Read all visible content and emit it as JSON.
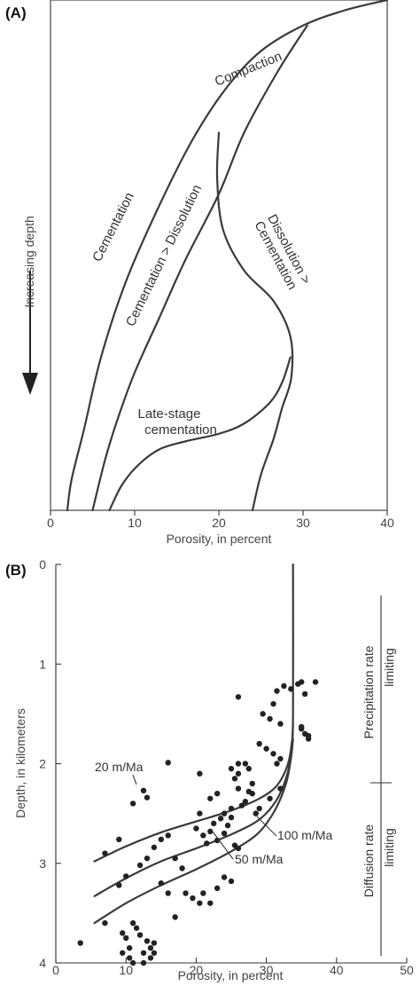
{
  "chart_data": [
    {
      "panel_label": "(A)",
      "type": "line",
      "x_ticks": [
        "0",
        "10",
        "20",
        "30",
        "40"
      ],
      "xlim": [
        0,
        40
      ],
      "xlabel": "Porosity, in percent",
      "ylabel": "Increasing depth",
      "curve_labels": {
        "compaction": "Compaction",
        "cementation": "Cementation",
        "cem_gt_dis": "Cementation > Dissolution",
        "dis_gt_cem_1": "Dissolution >",
        "dis_gt_cem_2": "Cementation",
        "late_1": "Late-stage",
        "late_2": "cementation"
      },
      "series": [
        {
          "name": "Compaction",
          "points": [
            [
              40,
              0.0
            ],
            [
              35,
              0.02
            ],
            [
              30,
              0.05
            ],
            [
              25,
              0.1
            ],
            [
              21,
              0.17
            ],
            [
              17,
              0.27
            ],
            [
              13,
              0.4
            ],
            [
              9,
              0.55
            ],
            [
              6,
              0.7
            ],
            [
              4,
              0.84
            ],
            [
              2.5,
              0.94
            ],
            [
              2,
              1.0
            ]
          ]
        },
        {
          "name": "Cementation > Dissolution",
          "points": [
            [
              30.5,
              0.05
            ],
            [
              27,
              0.14
            ],
            [
              23,
              0.26
            ],
            [
              20,
              0.38
            ],
            [
              16,
              0.51
            ],
            [
              13,
              0.62
            ],
            [
              10,
              0.73
            ],
            [
              8,
              0.82
            ],
            [
              6.5,
              0.9
            ],
            [
              5,
              1.0
            ]
          ]
        },
        {
          "name": "Dissolution > Cementation",
          "points": [
            [
              20,
              0.26
            ],
            [
              19.8,
              0.35
            ],
            [
              20.5,
              0.45
            ],
            [
              23,
              0.53
            ],
            [
              26.5,
              0.59
            ],
            [
              28.5,
              0.66
            ],
            [
              28.6,
              0.74
            ],
            [
              27.5,
              0.8
            ],
            [
              26.5,
              0.86
            ],
            [
              25,
              0.93
            ],
            [
              24,
              1.0
            ]
          ]
        },
        {
          "name": "Late-stage cementation",
          "points": [
            [
              28.5,
              0.7
            ],
            [
              27.5,
              0.75
            ],
            [
              26,
              0.79
            ],
            [
              23,
              0.83
            ],
            [
              20,
              0.85
            ],
            [
              16,
              0.865
            ],
            [
              13,
              0.88
            ],
            [
              10.5,
              0.91
            ],
            [
              8.5,
              0.95
            ],
            [
              7,
              1.0
            ]
          ]
        }
      ]
    },
    {
      "panel_label": "(B)",
      "type": "scatter",
      "x_ticks": [
        "0",
        "10",
        "20",
        "30",
        "40",
        "50"
      ],
      "y_ticks": [
        "0",
        "1",
        "2",
        "3",
        "4"
      ],
      "xlim": [
        0,
        50
      ],
      "ylim": [
        0,
        4
      ],
      "xlabel": "Porosity, in percent",
      "ylabel": "Depth, in kilometers",
      "annotations": {
        "precip_1": "Precipitation rate",
        "precip_2": "limiting",
        "diff_1": "Diffusion rate",
        "diff_2": "limiting"
      },
      "series": [
        {
          "name": "20 m/Ma",
          "points": [
            [
              5.5,
              2.98
            ],
            [
              10,
              2.83
            ],
            [
              15,
              2.69
            ],
            [
              20,
              2.58
            ],
            [
              25,
              2.47
            ],
            [
              29,
              2.35
            ],
            [
              31.5,
              2.22
            ],
            [
              33,
              2.02
            ],
            [
              33.6,
              1.8
            ],
            [
              33.8,
              1.5
            ],
            [
              33.8,
              0.0
            ]
          ]
        },
        {
          "name": "100 m/Ma",
          "points": [
            [
              5.5,
              3.33
            ],
            [
              10,
              3.15
            ],
            [
              15,
              2.98
            ],
            [
              20,
              2.85
            ],
            [
              25,
              2.71
            ],
            [
              29,
              2.56
            ],
            [
              31.5,
              2.36
            ],
            [
              33,
              2.1
            ],
            [
              33.6,
              1.85
            ],
            [
              33.8,
              1.6
            ]
          ]
        },
        {
          "name": "50 m/Ma",
          "points": [
            [
              5.5,
              3.6
            ],
            [
              10,
              3.4
            ],
            [
              15,
              3.22
            ],
            [
              20,
              3.06
            ],
            [
              25,
              2.88
            ],
            [
              28.8,
              2.7
            ],
            [
              31.2,
              2.47
            ],
            [
              32.8,
              2.2
            ],
            [
              33.5,
              1.95
            ],
            [
              33.8,
              1.75
            ]
          ]
        },
        {
          "name": "data",
          "points": [
            [
              3.5,
              3.8
            ],
            [
              7,
              2.9
            ],
            [
              9,
              2.76
            ],
            [
              11,
              2.4
            ],
            [
              12.5,
              2.27
            ],
            [
              13,
              2.34
            ],
            [
              16,
              1.99
            ],
            [
              7,
              3.6
            ],
            [
              9.5,
              3.7
            ],
            [
              10,
              3.75
            ],
            [
              10.5,
              3.85
            ],
            [
              11,
              3.6
            ],
            [
              11.5,
              3.65
            ],
            [
              12,
              3.72
            ],
            [
              12.5,
              3.9
            ],
            [
              13,
              3.78
            ],
            [
              13.5,
              3.85
            ],
            [
              14,
              3.8
            ],
            [
              9.5,
              3.9
            ],
            [
              10.5,
              3.95
            ],
            [
              11,
              4.0
            ],
            [
              12.5,
              4.0
            ],
            [
              13.5,
              3.95
            ],
            [
              14,
              3.9
            ],
            [
              9,
              3.22
            ],
            [
              10,
              3.13
            ],
            [
              12,
              3.02
            ],
            [
              13,
              2.95
            ],
            [
              14,
              2.84
            ],
            [
              15,
              2.76
            ],
            [
              16,
              2.72
            ],
            [
              17,
              2.95
            ],
            [
              18,
              3.05
            ],
            [
              15,
              3.2
            ],
            [
              16,
              3.3
            ],
            [
              17,
              3.54
            ],
            [
              18.5,
              3.3
            ],
            [
              19.5,
              3.35
            ],
            [
              20.5,
              3.4
            ],
            [
              21,
              3.3
            ],
            [
              22,
              3.4
            ],
            [
              23,
              3.25
            ],
            [
              24,
              3.14
            ],
            [
              25,
              3.18
            ],
            [
              20.5,
              2.1
            ],
            [
              22,
              2.35
            ],
            [
              23,
              2.3
            ],
            [
              24,
              2.5
            ],
            [
              25,
              2.45
            ],
            [
              20,
              2.65
            ],
            [
              20.5,
              2.5
            ],
            [
              21,
              2.72
            ],
            [
              21.5,
              2.8
            ],
            [
              22,
              2.68
            ],
            [
              22.5,
              2.6
            ],
            [
              23,
              2.77
            ],
            [
              23.5,
              2.55
            ],
            [
              24,
              2.7
            ],
            [
              24.5,
              2.62
            ],
            [
              25,
              2.54
            ],
            [
              25.5,
              2.82
            ],
            [
              26,
              2.85
            ],
            [
              26.5,
              2.42
            ],
            [
              27,
              2.38
            ],
            [
              27.5,
              2.28
            ],
            [
              28,
              2.3
            ],
            [
              28.5,
              2.5
            ],
            [
              29,
              2.45
            ],
            [
              26,
              2.1
            ],
            [
              27,
              2.0
            ],
            [
              27.5,
              2.05
            ],
            [
              28,
              2.2
            ],
            [
              26,
              2.25
            ],
            [
              25.5,
              2.15
            ],
            [
              29,
              1.8
            ],
            [
              30,
              1.85
            ],
            [
              31,
              1.9
            ],
            [
              31.5,
              2.0
            ],
            [
              32,
              1.95
            ],
            [
              30.5,
              2.35
            ],
            [
              32,
              2.25
            ],
            [
              29.5,
              1.5
            ],
            [
              30.5,
              1.55
            ],
            [
              31,
              1.4
            ],
            [
              32,
              1.6
            ],
            [
              31.5,
              1.27
            ],
            [
              32.5,
              1.22
            ],
            [
              33.5,
              1.25
            ],
            [
              34.5,
              1.2
            ],
            [
              35,
              1.18
            ],
            [
              35.5,
              1.3
            ],
            [
              37,
              1.18
            ],
            [
              35,
              1.63
            ],
            [
              35.5,
              1.7
            ],
            [
              36,
              1.72
            ],
            [
              36,
              1.75
            ],
            [
              35,
              1.65
            ],
            [
              26,
              1.33
            ],
            [
              26,
              2.0
            ],
            [
              25,
              2.05
            ]
          ]
        }
      ]
    }
  ]
}
